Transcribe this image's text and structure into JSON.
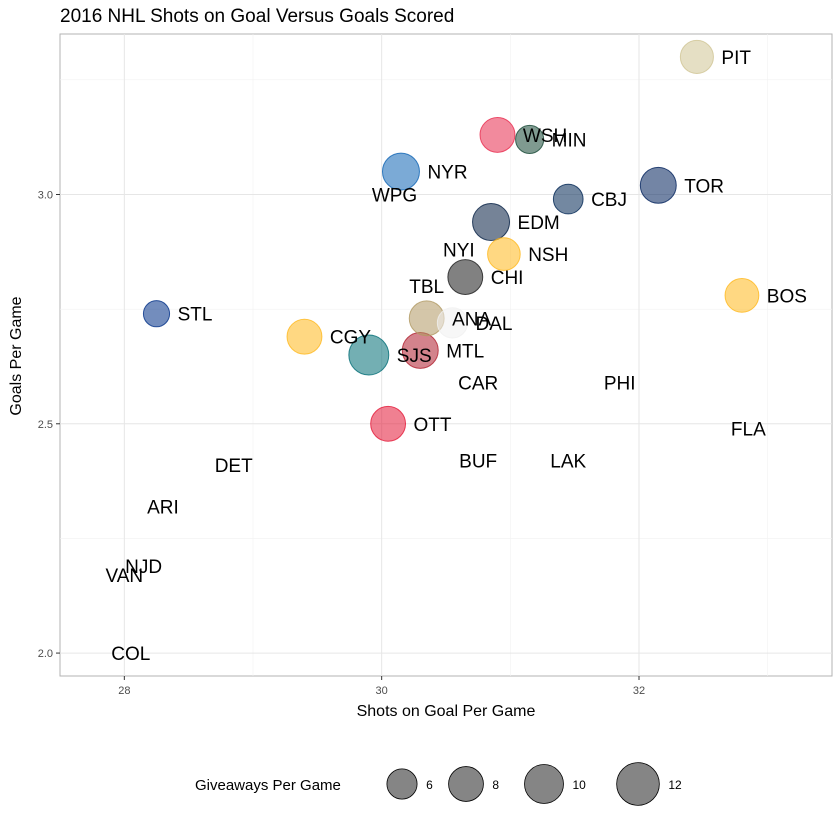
{
  "chart_data": {
    "type": "scatter",
    "title": "2016 NHL Shots on Goal Versus Goals Scored",
    "xlabel": "Shots on Goal Per Game",
    "ylabel": "Goals Per Game",
    "xlim": [
      27.5,
      33.5
    ],
    "ylim": [
      1.95,
      3.35
    ],
    "x_ticks": [
      28,
      30,
      32
    ],
    "x_tick_labels": [
      "28",
      "30",
      "32"
    ],
    "y_ticks": [
      2.0,
      2.5,
      3.0
    ],
    "y_tick_labels": [
      "2.0",
      "2.5",
      "3.0"
    ],
    "grid": true,
    "legend": {
      "title": "Giveaways Per Game",
      "position": "bottom",
      "sizes": [
        6,
        8,
        10,
        12
      ],
      "labels": [
        "6",
        "8",
        "10",
        "12"
      ],
      "color": "#333333"
    },
    "points": [
      {
        "team": "PIT",
        "shots": 32.45,
        "goals": 3.3,
        "giveaways": 7.2,
        "color": "#CFC493"
      },
      {
        "team": "WSH",
        "shots": 30.9,
        "goals": 3.13,
        "giveaways": 8.0,
        "color": "#E8294C"
      },
      {
        "team": "MIN",
        "shots": 31.15,
        "goals": 3.12,
        "giveaways": 5.2,
        "color": "#154734"
      },
      {
        "team": "NYR",
        "shots": 30.15,
        "goals": 3.05,
        "giveaways": 9.0,
        "color": "#0F64B4"
      },
      {
        "team": "WPG",
        "shots": 30.1,
        "goals": 3.0,
        "giveaways": 0,
        "color": "#041E42"
      },
      {
        "team": "TOR",
        "shots": 32.15,
        "goals": 3.02,
        "giveaways": 8.5,
        "color": "#00205B"
      },
      {
        "team": "CBJ",
        "shots": 31.45,
        "goals": 2.99,
        "giveaways": 5.8,
        "color": "#002654"
      },
      {
        "team": "EDM",
        "shots": 30.85,
        "goals": 2.94,
        "giveaways": 9.0,
        "color": "#041E42"
      },
      {
        "team": "NYI",
        "shots": 30.6,
        "goals": 2.88,
        "giveaways": 0,
        "color": "#00539B"
      },
      {
        "team": "NSH",
        "shots": 30.95,
        "goals": 2.87,
        "giveaways": 7.0,
        "color": "#FFB81C"
      },
      {
        "team": "CHI",
        "shots": 30.65,
        "goals": 2.82,
        "giveaways": 8.0,
        "color": "#1A1A1A"
      },
      {
        "team": "TBL",
        "shots": 30.35,
        "goals": 2.8,
        "giveaways": 0,
        "color": "#002868"
      },
      {
        "team": "BOS",
        "shots": 32.8,
        "goals": 2.78,
        "giveaways": 7.5,
        "color": "#FFB81C"
      },
      {
        "team": "STL",
        "shots": 28.25,
        "goals": 2.74,
        "giveaways": 4.5,
        "color": "#002F87"
      },
      {
        "team": "ANA",
        "shots": 30.35,
        "goals": 2.73,
        "giveaways": 8.0,
        "color": "#B09862"
      },
      {
        "team": "DAL",
        "shots": 30.55,
        "goals": 2.72,
        "giveaways": 6.0,
        "color": "#F0F0F0"
      },
      {
        "team": "CGY",
        "shots": 29.4,
        "goals": 2.69,
        "giveaways": 8.0,
        "color": "#FFB81C"
      },
      {
        "team": "SJS",
        "shots": 29.9,
        "goals": 2.65,
        "giveaways": 10.5,
        "color": "#006D75"
      },
      {
        "team": "MTL",
        "shots": 30.3,
        "goals": 2.66,
        "giveaways": 8.5,
        "color": "#AF1E2D"
      },
      {
        "team": "CAR",
        "shots": 30.75,
        "goals": 2.59,
        "giveaways": 0,
        "color": "#CE1126"
      },
      {
        "team": "PHI",
        "shots": 31.85,
        "goals": 2.59,
        "giveaways": 0,
        "color": "#F74902"
      },
      {
        "team": "OTT",
        "shots": 30.05,
        "goals": 2.5,
        "giveaways": 8.0,
        "color": "#E31837"
      },
      {
        "team": "FLA",
        "shots": 32.85,
        "goals": 2.49,
        "giveaways": 0,
        "color": "#C8102E"
      },
      {
        "team": "BUF",
        "shots": 30.75,
        "goals": 2.42,
        "giveaways": 0,
        "color": "#002654"
      },
      {
        "team": "LAK",
        "shots": 31.45,
        "goals": 2.42,
        "giveaways": 0,
        "color": "#111111"
      },
      {
        "team": "DET",
        "shots": 28.85,
        "goals": 2.41,
        "giveaways": 0,
        "color": "#CE1126"
      },
      {
        "team": "ARI",
        "shots": 28.3,
        "goals": 2.32,
        "giveaways": 0,
        "color": "#8C2633"
      },
      {
        "team": "NJD",
        "shots": 28.15,
        "goals": 2.19,
        "giveaways": 0,
        "color": "#CE1126"
      },
      {
        "team": "VAN",
        "shots": 28.0,
        "goals": 2.17,
        "giveaways": 0,
        "color": "#00205B"
      },
      {
        "team": "COL",
        "shots": 28.05,
        "goals": 2.0,
        "giveaways": 0,
        "color": "#6F263D"
      }
    ]
  }
}
